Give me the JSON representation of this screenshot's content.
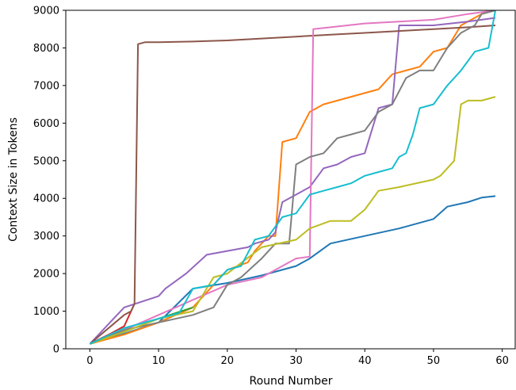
{
  "chart_data": {
    "type": "line",
    "title": "",
    "xlabel": "Round Number",
    "ylabel": "Context Size in Tokens",
    "xlim": [
      -3.5,
      62
    ],
    "ylim": [
      0,
      9000
    ],
    "xticks": [
      0,
      10,
      20,
      30,
      40,
      50,
      60
    ],
    "yticks": [
      0,
      1000,
      2000,
      3000,
      4000,
      5000,
      6000,
      7000,
      8000,
      9000
    ],
    "grid": false,
    "legend": "none",
    "colors": [
      "#1f77b4",
      "#ff7f0e",
      "#2ca02c",
      "#d62728",
      "#9467bd",
      "#8c564b",
      "#e377c2",
      "#7f7f7f",
      "#bcbd22",
      "#17becf"
    ],
    "series": [
      {
        "color": "#1f77b4",
        "x": [
          0,
          5,
          10,
          15,
          20,
          25,
          30,
          32,
          35,
          40,
          45,
          50,
          52,
          55,
          57,
          59
        ],
        "y": [
          130,
          400,
          700,
          1600,
          1750,
          1950,
          2200,
          2400,
          2800,
          3000,
          3200,
          3450,
          3780,
          3900,
          4020,
          4060
        ]
      },
      {
        "color": "#ff7f0e",
        "x": [
          0,
          5,
          10,
          15,
          20,
          23,
          24,
          25,
          26,
          27,
          28,
          30,
          32,
          34,
          36,
          38,
          40,
          42,
          44,
          46,
          48,
          50,
          52,
          54,
          57,
          59
        ],
        "y": [
          130,
          380,
          700,
          1100,
          2100,
          2300,
          2600,
          2800,
          3000,
          3000,
          5500,
          5600,
          6300,
          6500,
          6600,
          6700,
          6800,
          6900,
          7300,
          7400,
          7500,
          7900,
          8000,
          8600,
          8900,
          9000
        ]
      },
      {
        "color": "#2ca02c",
        "x": [
          0,
          3,
          5,
          10,
          15
        ],
        "y": [
          130,
          350,
          450,
          800,
          1100
        ]
      },
      {
        "color": "#d62728",
        "x": [
          0,
          3,
          5,
          6,
          6.5
        ],
        "y": [
          130,
          400,
          600,
          1000,
          1200
        ]
      },
      {
        "color": "#9467bd",
        "x": [
          0,
          5,
          10,
          11,
          14,
          17,
          20,
          23,
          24,
          26,
          27,
          28,
          30,
          32,
          34,
          36,
          38,
          40,
          42,
          44,
          45,
          50,
          55,
          59
        ],
        "y": [
          130,
          1100,
          1400,
          1600,
          2000,
          2500,
          2600,
          2700,
          2800,
          2900,
          3100,
          3900,
          4100,
          4300,
          4800,
          4900,
          5100,
          5200,
          6400,
          6500,
          8600,
          8600,
          8700,
          8800
        ]
      },
      {
        "color": "#8c564b",
        "x": [
          0,
          5,
          6,
          6.5,
          7,
          8,
          10,
          15,
          20,
          25,
          30,
          35,
          40,
          45,
          50,
          55,
          59
        ],
        "y": [
          130,
          900,
          1000,
          1200,
          8100,
          8150,
          8150,
          8170,
          8200,
          8250,
          8300,
          8350,
          8400,
          8450,
          8500,
          8550,
          8600
        ]
      },
      {
        "color": "#e377c2",
        "x": [
          0,
          5,
          10,
          15,
          20,
          25,
          28,
          30,
          32,
          32.5,
          35,
          40,
          45,
          50,
          55,
          59
        ],
        "y": [
          130,
          500,
          900,
          1300,
          1700,
          1900,
          2200,
          2400,
          2450,
          8500,
          8550,
          8650,
          8700,
          8750,
          8900,
          9000
        ]
      },
      {
        "color": "#7f7f7f",
        "x": [
          0,
          5,
          10,
          15,
          18,
          20,
          22,
          25,
          27,
          29,
          30,
          31,
          32,
          34,
          36,
          38,
          40,
          42,
          44,
          46,
          48,
          50,
          52,
          54,
          56,
          57,
          59
        ],
        "y": [
          130,
          500,
          700,
          900,
          1100,
          1700,
          1900,
          2400,
          2800,
          2800,
          4900,
          5000,
          5100,
          5200,
          5600,
          5700,
          5800,
          6300,
          6500,
          7200,
          7400,
          7400,
          8000,
          8400,
          8600,
          8900,
          9000
        ]
      },
      {
        "color": "#bcbd22",
        "x": [
          0,
          5,
          10,
          15,
          18,
          20,
          25,
          30,
          32,
          35,
          38,
          40,
          42,
          45,
          50,
          51,
          53,
          54,
          55,
          57,
          59
        ],
        "y": [
          130,
          450,
          800,
          1000,
          1900,
          2000,
          2700,
          2900,
          3200,
          3400,
          3400,
          3700,
          4200,
          4300,
          4500,
          4600,
          5000,
          6500,
          6600,
          6600,
          6700
        ]
      },
      {
        "color": "#17becf",
        "x": [
          0,
          5,
          10,
          13,
          15,
          18,
          20,
          22,
          24,
          26,
          28,
          30,
          32,
          34,
          36,
          38,
          40,
          42,
          44,
          45,
          46,
          47,
          48,
          50,
          52,
          53,
          54,
          56,
          58,
          59
        ],
        "y": [
          130,
          550,
          800,
          950,
          1600,
          1700,
          2100,
          2200,
          2900,
          3000,
          3500,
          3600,
          4100,
          4200,
          4300,
          4400,
          4600,
          4700,
          4800,
          5100,
          5200,
          5700,
          6400,
          6500,
          7000,
          7200,
          7400,
          7900,
          8000,
          9000
        ]
      }
    ]
  }
}
